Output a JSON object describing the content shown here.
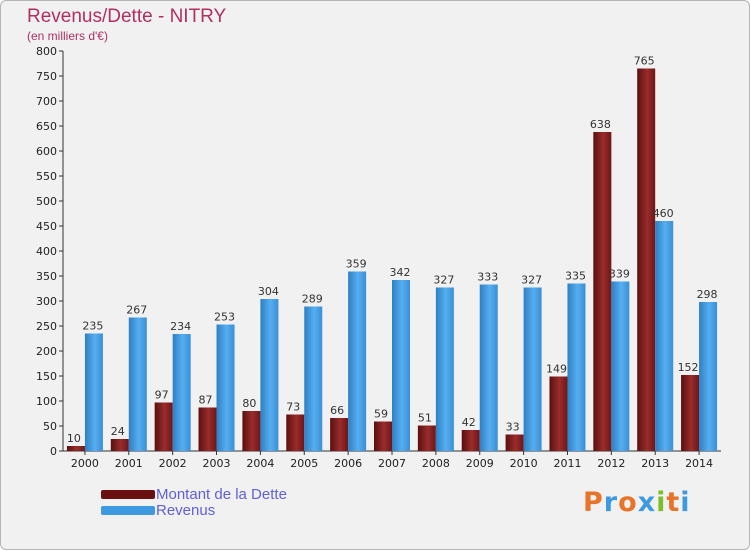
{
  "header": {
    "title": "Revenus/Dette - NITRY",
    "subtitle": "(en milliers d'€)"
  },
  "colors": {
    "dette": "#8b2020",
    "revenus": "#3d9ae0",
    "title": "#b03060",
    "legend_text": "#6060d8"
  },
  "chart_data": {
    "type": "bar",
    "title": "Revenus/Dette - NITRY",
    "subtitle": "(en milliers d'€)",
    "categories": [
      "2000",
      "2001",
      "2002",
      "2003",
      "2004",
      "2005",
      "2006",
      "2007",
      "2008",
      "2009",
      "2010",
      "2011",
      "2012",
      "2013",
      "2014"
    ],
    "series": [
      {
        "name": "Montant de la Dette",
        "values": [
          10,
          24,
          97,
          87,
          80,
          73,
          66,
          59,
          51,
          42,
          33,
          149,
          638,
          765,
          152
        ]
      },
      {
        "name": "Revenus",
        "values": [
          235,
          267,
          234,
          253,
          304,
          289,
          359,
          342,
          327,
          333,
          327,
          335,
          339,
          460,
          298
        ]
      }
    ],
    "yticks": [
      "0",
      "50",
      "100",
      "150",
      "200",
      "250",
      "300",
      "350",
      "400",
      "450",
      "500",
      "550",
      "600",
      "650",
      "700",
      "750",
      "800"
    ],
    "ylim": [
      0,
      800
    ],
    "grid": false,
    "legend": "bottom-left"
  },
  "legend": {
    "items": [
      {
        "label": "Montant de la Dette",
        "color": "#8b2020"
      },
      {
        "label": "Revenus",
        "color": "#3d9ae0"
      }
    ]
  },
  "logo": {
    "text": "Proxiti"
  }
}
